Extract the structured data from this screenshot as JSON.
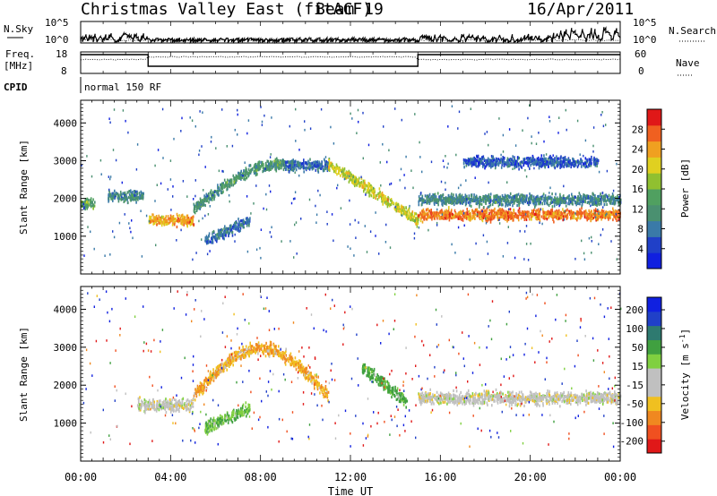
{
  "header": {
    "title": "Christmas Valley East (fitACF)",
    "beam": "Beam 19",
    "date": "16/Apr/2011"
  },
  "top_panels": {
    "nsky_label": "N.Sky",
    "nsearch_label": "N.Search",
    "noise_ticks_left": [
      "10^5",
      "10^0"
    ],
    "noise_ticks_right": [
      "10^5",
      "10^0"
    ],
    "freq_label_1": "Freq.",
    "freq_label_2": "[MHz]",
    "freq_ticks": [
      "18",
      "8"
    ],
    "nave_ticks": [
      "60",
      "0"
    ],
    "nave_label": "Nave",
    "cpid_label": "CPID",
    "cpid_text": "normal 150 RF"
  },
  "colors": {
    "power_scale": [
      "#1020e0",
      "#2040c8",
      "#3a7aa8",
      "#4a9070",
      "#50a060",
      "#90c030",
      "#e0d020",
      "#f0a020",
      "#f06020",
      "#e01818"
    ],
    "velocity_scale": [
      "#e01818",
      "#f05020",
      "#f08820",
      "#f0c020",
      "#c0c0c0",
      "#c0c0c0",
      "#80d040",
      "#40a040",
      "#2e7a70",
      "#2040c8",
      "#1020e0"
    ]
  },
  "chart_data": [
    {
      "type": "heatmap",
      "title": "Power",
      "ylabel": "Slant Range [km]",
      "ylim": [
        0,
        4600
      ],
      "y_ticks": [
        "1000",
        "2000",
        "3000",
        "4000"
      ],
      "colorbar_label": "Power [dB]",
      "colorbar_ticks": [
        "4",
        "8",
        "12",
        "16",
        "20",
        "24",
        "28"
      ],
      "colorbar_range": [
        0,
        32
      ],
      "echo_bands": [
        {
          "t_start": 0.0,
          "t_end": 0.6,
          "range_km": 1900,
          "value_db": 14
        },
        {
          "t_start": 1.2,
          "t_end": 2.8,
          "range_km": 2100,
          "value_db": 10
        },
        {
          "t_start": 3.0,
          "t_end": 5.0,
          "range_km": 1450,
          "value_db": 24
        },
        {
          "t_start": 5.0,
          "t_end": 9.0,
          "range_km": 2700,
          "value_db": 12
        },
        {
          "t_start": 5.5,
          "t_end": 7.5,
          "range_km": 1200,
          "value_db": 8
        },
        {
          "t_start": 9.0,
          "t_end": 11.0,
          "range_km": 2900,
          "value_db": 8
        },
        {
          "t_start": 11.0,
          "t_end": 15.0,
          "range_km": 1600,
          "value_db": 20
        },
        {
          "t_start": 15.0,
          "t_end": 24.0,
          "range_km": 1600,
          "value_db": 26
        },
        {
          "t_start": 15.0,
          "t_end": 24.0,
          "range_km": 2000,
          "value_db": 10
        },
        {
          "t_start": 17.0,
          "t_end": 23.0,
          "range_km": 3000,
          "value_db": 6
        }
      ]
    },
    {
      "type": "heatmap",
      "title": "Velocity",
      "ylabel": "Slant Range [km]",
      "xlabel": "Time UT",
      "ylim": [
        0,
        4600
      ],
      "y_ticks": [
        "1000",
        "2000",
        "3000",
        "4000"
      ],
      "colorbar_label": "Velocity [m s^-1]",
      "colorbar_ticks": [
        "200",
        "100",
        "50",
        "15",
        "-15",
        "-50",
        "-100",
        "-200"
      ],
      "x_ticks": [
        "00:00",
        "04:00",
        "08:00",
        "12:00",
        "16:00",
        "20:00",
        "00:00"
      ],
      "xlim_hours": [
        0,
        24
      ],
      "echo_bands": [
        {
          "t_start": 2.5,
          "t_end": 5.0,
          "range_km": 1500,
          "value_ms": 0
        },
        {
          "t_start": 5.5,
          "t_end": 7.5,
          "range_km": 1200,
          "value_ms": 30
        },
        {
          "t_start": 5.0,
          "t_end": 11.0,
          "range_km": 2700,
          "value_ms": -30
        },
        {
          "t_start": 12.5,
          "t_end": 14.5,
          "range_km": 2000,
          "value_ms": 40
        },
        {
          "t_start": 15.0,
          "t_end": 24.0,
          "range_km": 1700,
          "value_ms": 0
        }
      ]
    }
  ]
}
